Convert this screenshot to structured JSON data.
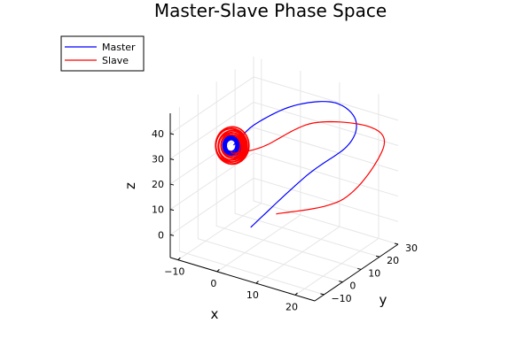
{
  "chart_data": {
    "type": "line",
    "projection": "3d",
    "title": "Master-Slave Phase Space",
    "xlabel": "x",
    "ylabel": "y",
    "zlabel": "z",
    "x_ticks": [
      "−10",
      "0",
      "10",
      "20"
    ],
    "x_tick_values": [
      -10,
      0,
      10,
      20
    ],
    "y_ticks": [
      "−10",
      "0",
      "10",
      "20",
      "30"
    ],
    "y_tick_values": [
      -10,
      0,
      10,
      20,
      30
    ],
    "z_ticks": [
      "0",
      "10",
      "20",
      "30",
      "40"
    ],
    "z_tick_values": [
      0,
      10,
      20,
      30,
      40
    ],
    "xlim": [
      -12,
      25
    ],
    "ylim": [
      -15,
      30
    ],
    "zlim": [
      -9,
      48
    ],
    "grid": true,
    "legend_position": "top-left",
    "colors": {
      "master": "#0000ff",
      "slave": "#ff0000"
    },
    "series": [
      {
        "name": "Master",
        "color": "#0000ff",
        "points": [
          [
            1,
            1,
            1
          ],
          [
            10,
            12,
            20
          ],
          [
            16,
            22,
            30
          ],
          [
            16,
            26,
            38
          ],
          [
            11,
            25,
            43
          ],
          [
            4,
            18,
            42
          ],
          [
            -2,
            10,
            36
          ],
          [
            -4,
            4,
            31
          ],
          [
            -4.3,
            3,
            30
          ]
        ],
        "attractor": {
          "center": [
            -4.6,
            2.5,
            30
          ],
          "radius": [
            1.0,
            1.5,
            3.3
          ]
        }
      },
      {
        "name": "Slave",
        "color": "#ff0000",
        "points": [
          [
            8,
            0,
            10
          ],
          [
            18,
            15,
            13
          ],
          [
            22,
            28,
            28
          ],
          [
            18,
            30,
            34
          ],
          [
            8,
            20,
            36
          ],
          [
            0,
            10,
            28
          ],
          [
            -4,
            3,
            27
          ],
          [
            -4.6,
            2.5,
            28
          ]
        ],
        "attractor": {
          "center": [
            -4.6,
            2.5,
            30
          ],
          "radius": [
            2.2,
            3.0,
            6.2
          ]
        }
      }
    ]
  }
}
